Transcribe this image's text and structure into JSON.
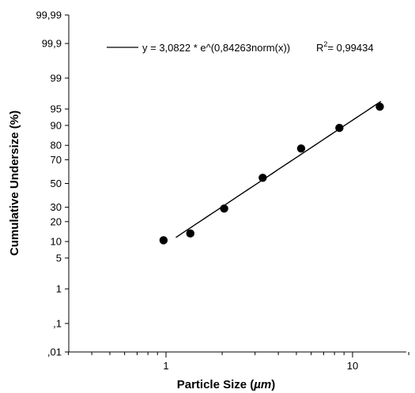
{
  "chart_data": {
    "type": "scatter",
    "xlabel": "Particle Size (",
    "xlabel_unit": "µm",
    "xlabel_close": ")",
    "ylabel": "Cumulative Undersize (%)",
    "x_scale": "log",
    "y_scale": "probability",
    "xlim": [
      0.3,
      20
    ],
    "x_ticks": [
      {
        "value": 1,
        "label": "1"
      },
      {
        "value": 10,
        "label": "10"
      }
    ],
    "y_ticks": [
      {
        "value": 99.99,
        "label": "99,99"
      },
      {
        "value": 99.9,
        "label": "99,9"
      },
      {
        "value": 99,
        "label": "99"
      },
      {
        "value": 95,
        "label": "95"
      },
      {
        "value": 90,
        "label": "90"
      },
      {
        "value": 80,
        "label": "80"
      },
      {
        "value": 70,
        "label": "70"
      },
      {
        "value": 50,
        "label": "50"
      },
      {
        "value": 30,
        "label": "30"
      },
      {
        "value": 20,
        "label": "20"
      },
      {
        "value": 10,
        "label": "10"
      },
      {
        "value": 5,
        "label": "5"
      },
      {
        "value": 1,
        "label": "1"
      },
      {
        "value": 0.1,
        "label": ",1"
      },
      {
        "value": 0.01,
        "label": ",01"
      }
    ],
    "points": [
      {
        "x": 0.97,
        "y": 10.5
      },
      {
        "x": 1.35,
        "y": 13.5
      },
      {
        "x": 2.05,
        "y": 29
      },
      {
        "x": 3.3,
        "y": 55
      },
      {
        "x": 5.3,
        "y": 78
      },
      {
        "x": 8.5,
        "y": 89
      },
      {
        "x": 14,
        "y": 95.5
      }
    ],
    "fit_line": {
      "x_start": 1.13,
      "x_end": 14.2,
      "a": 3.0822,
      "b": 0.84263
    },
    "legend": {
      "equation": "y = 3,0822 * e^(0,84263norm(x))",
      "r2_prefix": "R",
      "r2_superscript": "2",
      "r2_value": "= 0,99434"
    }
  }
}
